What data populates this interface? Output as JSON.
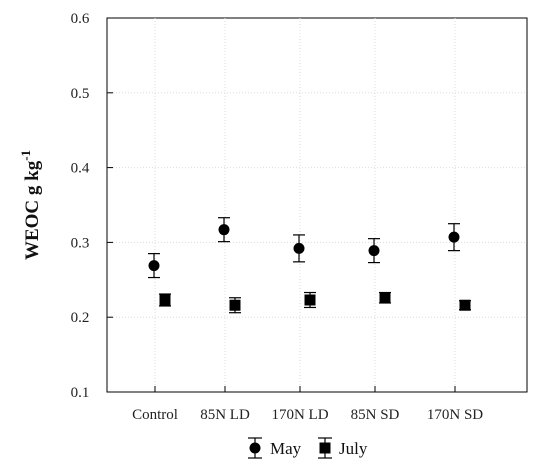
{
  "chart_data": {
    "type": "scatter",
    "categories": [
      "Control",
      "85N LD",
      "170N LD",
      "85N SD",
      "170N SD"
    ],
    "ylabel": "WEOC g kg",
    "ylabel_superscript": "-1",
    "ylim": [
      0.1,
      0.6
    ],
    "yticks": [
      "0.1",
      "0.2",
      "0.3",
      "0.4",
      "0.5",
      "0.6"
    ],
    "grid": true,
    "legend_position": "bottom",
    "series": [
      {
        "name": "May",
        "marker": "circle",
        "color": "#000000",
        "values": [
          0.269,
          0.317,
          0.292,
          0.289,
          0.307
        ],
        "error": [
          0.016,
          0.016,
          0.018,
          0.016,
          0.018
        ]
      },
      {
        "name": "July",
        "marker": "square",
        "color": "#000000",
        "values": [
          0.223,
          0.216,
          0.223,
          0.226,
          0.216
        ],
        "error": [
          0.008,
          0.01,
          0.01,
          0.007,
          0.006
        ]
      }
    ]
  }
}
